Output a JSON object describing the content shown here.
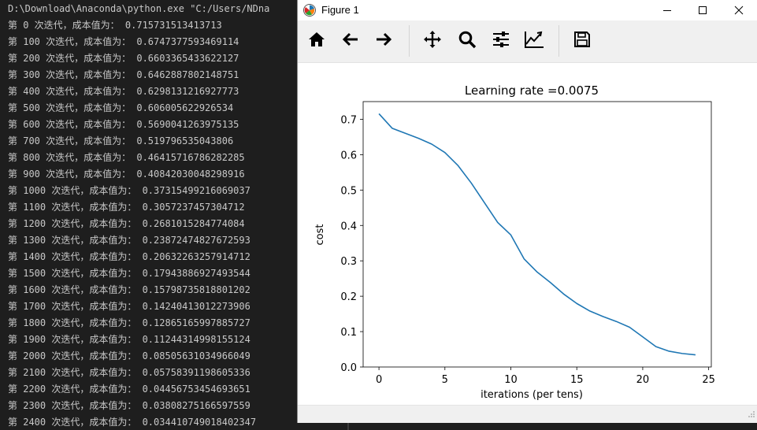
{
  "console": {
    "lines": [
      "D:\\Download\\Anaconda\\python.exe \"C:/Users/NDna",
      "第 0 次迭代，成本值为： 0.715731513413713",
      "第 100 次迭代，成本值为： 0.6747377593469114",
      "第 200 次迭代，成本值为： 0.6603365433622127",
      "第 300 次迭代，成本值为： 0.6462887802148751",
      "第 400 次迭代，成本值为： 0.6298131216927773",
      "第 500 次迭代，成本值为： 0.606005622926534",
      "第 600 次迭代，成本值为： 0.5690041263975135",
      "第 700 次迭代，成本值为： 0.519796535043806",
      "第 800 次迭代，成本值为： 0.46415716786282285",
      "第 900 次迭代，成本值为： 0.40842030048298916",
      "第 1000 次迭代，成本值为： 0.37315499216069037",
      "第 1100 次迭代，成本值为： 0.3057237457304712",
      "第 1200 次迭代，成本值为： 0.2681015284774084",
      "第 1300 次迭代，成本值为： 0.23872474827672593",
      "第 1400 次迭代，成本值为： 0.20632263257914712",
      "第 1500 次迭代，成本值为： 0.17943886927493544",
      "第 1600 次迭代，成本值为： 0.15798735818801202",
      "第 1700 次迭代，成本值为： 0.14240413012273906",
      "第 1800 次迭代，成本值为： 0.12865165997885727",
      "第 1900 次迭代，成本值为： 0.11244314998155124",
      "第 2000 次迭代，成本值为： 0.08505631034966049",
      "第 2100 次迭代，成本值为： 0.05758391198605336",
      "第 2200 次迭代，成本值为： 0.04456753454693651",
      "第 2300 次迭代，成本值为： 0.03808275166597559",
      "第 2400 次迭代，成本值为： 0.034410749018402347"
    ]
  },
  "window": {
    "title": "Figure 1",
    "controls": [
      "minimize-icon",
      "maximize-icon",
      "close-icon"
    ]
  },
  "toolbar": {
    "tools": [
      "home-icon",
      "back-arrow-icon",
      "forward-arrow-icon",
      "pan-icon",
      "zoom-icon",
      "subplots-icon",
      "edit-curve-icon",
      "save-icon"
    ]
  },
  "colors": {
    "line": "#1f77b4",
    "console_bg": "#1e1e1e",
    "console_text": "#c8c8c8"
  },
  "chart_data": {
    "type": "line",
    "title": "Learning rate =0.0075",
    "xlabel": "iterations (per tens)",
    "ylabel": "cost",
    "xlim": [
      -1.2,
      25.2
    ],
    "ylim": [
      0.0,
      0.75
    ],
    "xticks": [
      0,
      5,
      10,
      15,
      20,
      25
    ],
    "yticks": [
      0.0,
      0.1,
      0.2,
      0.3,
      0.4,
      0.5,
      0.6,
      0.7
    ],
    "x": [
      0,
      1,
      2,
      3,
      4,
      5,
      6,
      7,
      8,
      9,
      10,
      11,
      12,
      13,
      14,
      15,
      16,
      17,
      18,
      19,
      20,
      21,
      22,
      23,
      24
    ],
    "y": [
      0.715731513413713,
      0.6747377593469114,
      0.6603365433622127,
      0.6462887802148751,
      0.6298131216927773,
      0.606005622926534,
      0.5690041263975135,
      0.519796535043806,
      0.46415716786282285,
      0.40842030048298916,
      0.37315499216069037,
      0.3057237457304712,
      0.2681015284774084,
      0.23872474827672593,
      0.20632263257914712,
      0.17943886927493544,
      0.15798735818801202,
      0.14240413012273906,
      0.12865165997885727,
      0.11244314998155124,
      0.08505631034966049,
      0.05758391198605336,
      0.04456753454693651,
      0.03808275166597559,
      0.034410749018402347
    ],
    "grid": false,
    "legend": "none"
  }
}
